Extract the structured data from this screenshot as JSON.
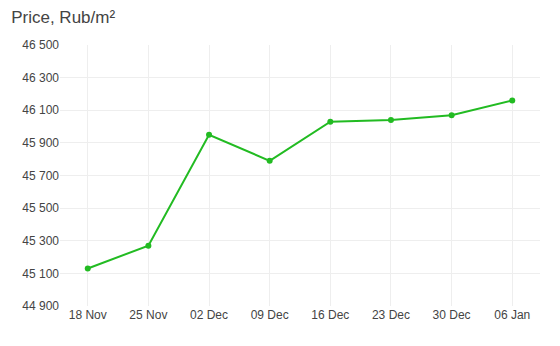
{
  "chart_data": {
    "type": "line",
    "title": "Price, Rub/m²",
    "categories": [
      "18 Nov",
      "25 Nov",
      "02 Dec",
      "09 Dec",
      "16 Dec",
      "23 Dec",
      "30 Dec",
      "06 Jan"
    ],
    "values": [
      45130,
      45270,
      45950,
      45790,
      46030,
      46040,
      46070,
      46160
    ],
    "color": "#22bb22",
    "marker": "circle",
    "ylim": [
      44900,
      46500
    ],
    "yticks": [
      {
        "value": 44900,
        "label": "44 900"
      },
      {
        "value": 45100,
        "label": "45 100"
      },
      {
        "value": 45300,
        "label": "45 300"
      },
      {
        "value": 45500,
        "label": "45 500"
      },
      {
        "value": 45700,
        "label": "45 700"
      },
      {
        "value": 45900,
        "label": "45 900"
      },
      {
        "value": 46100,
        "label": "46 100"
      },
      {
        "value": 46300,
        "label": "46 300"
      },
      {
        "value": 46500,
        "label": "46 500"
      }
    ],
    "grid": true
  }
}
